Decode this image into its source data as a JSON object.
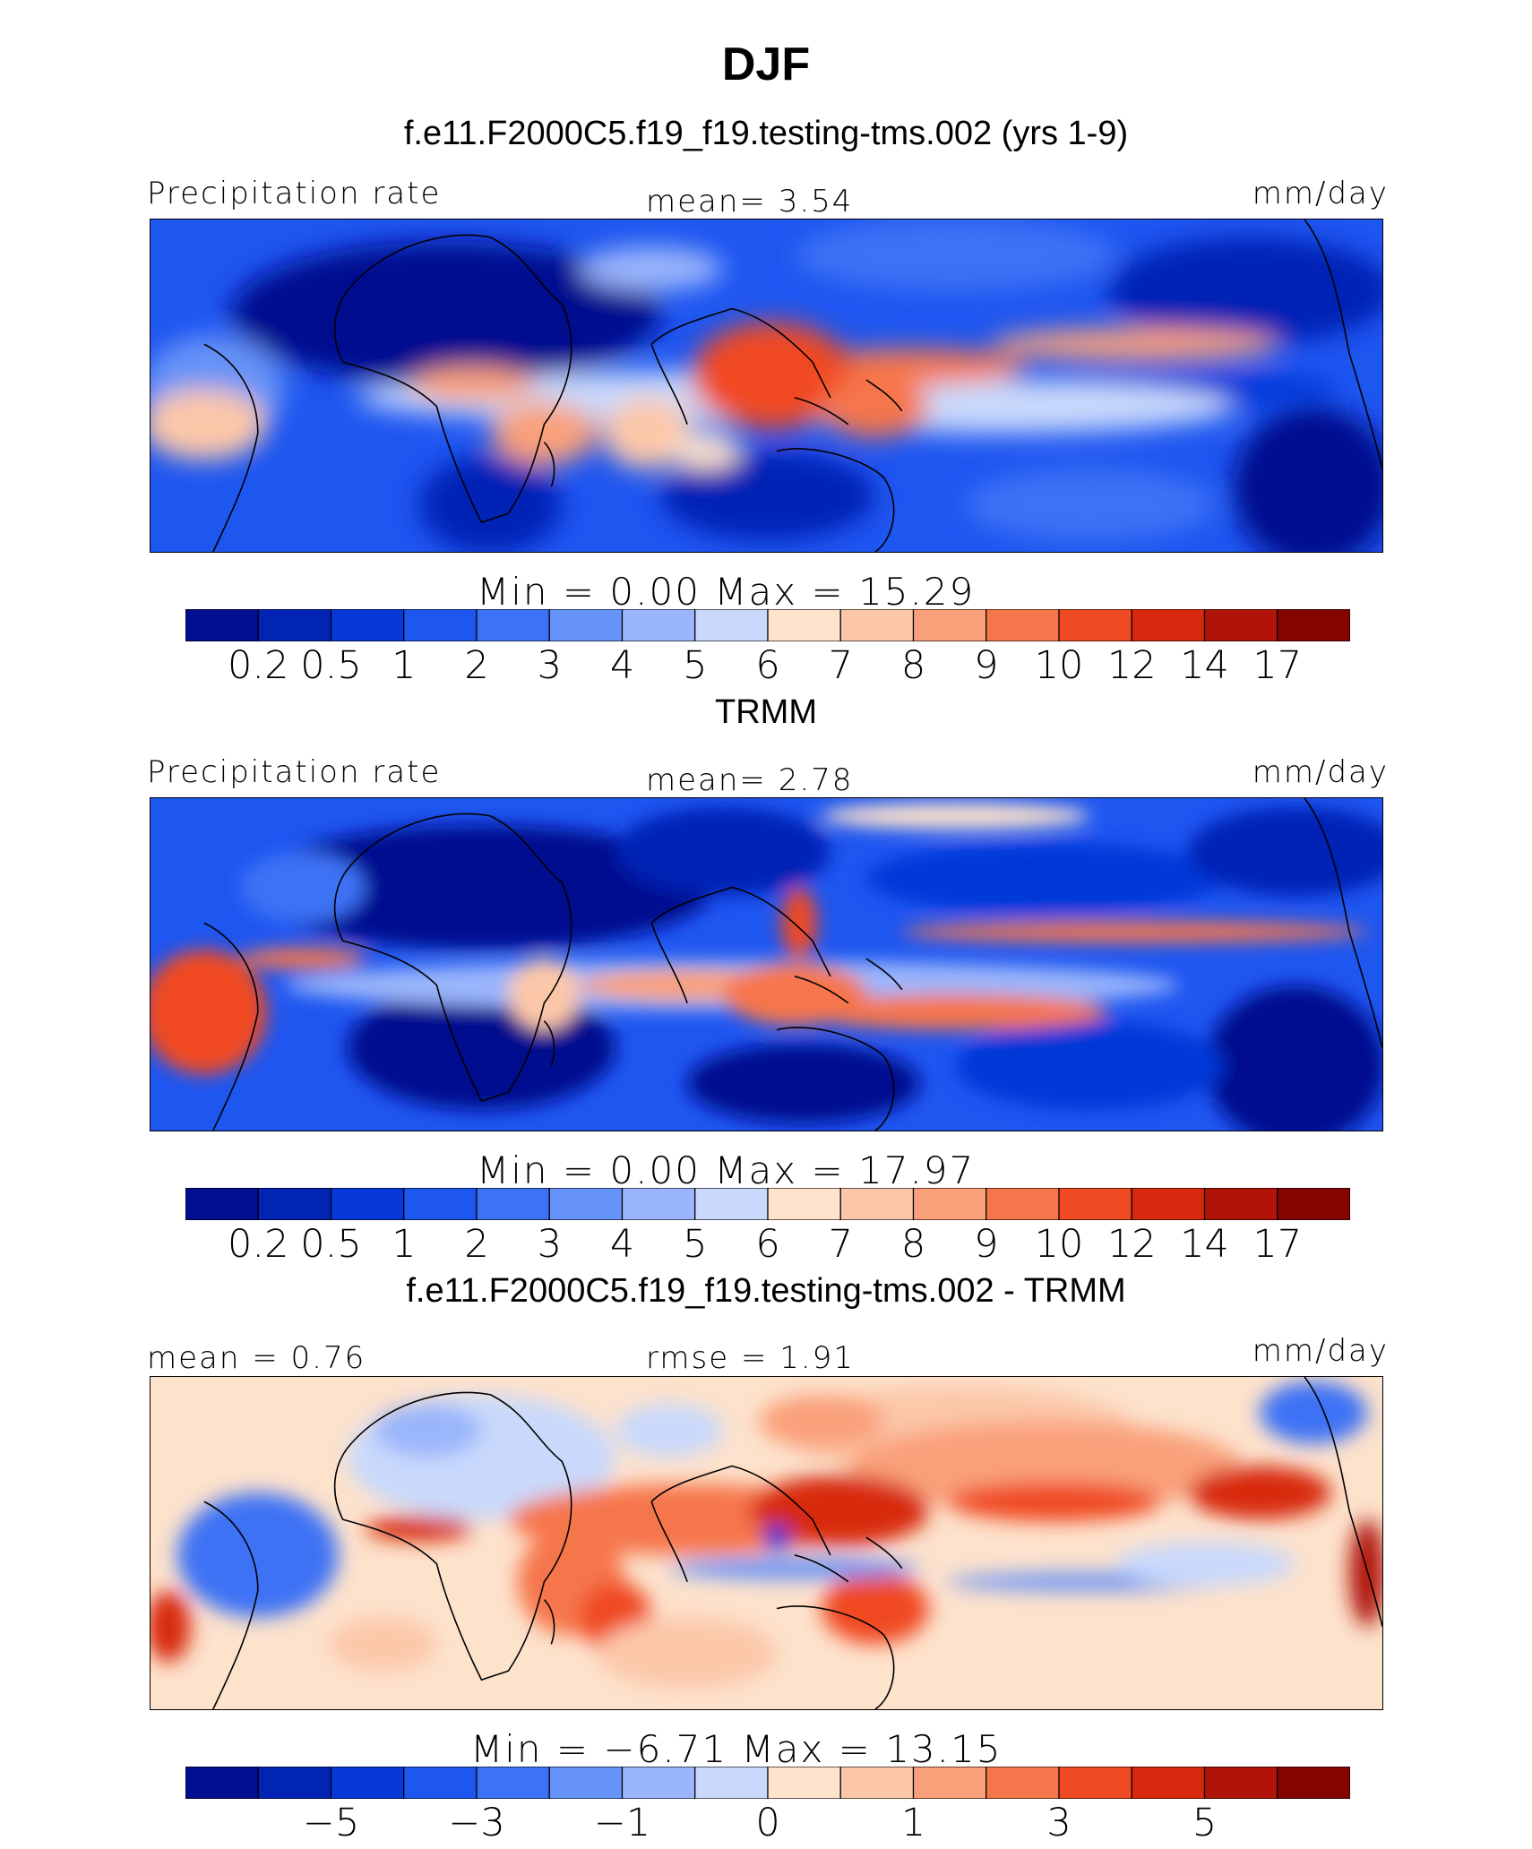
{
  "figure": {
    "title": "DJF",
    "units": "mm/day"
  },
  "panels": [
    {
      "title": "f.e11.F2000C5.f19_f19.testing-tms.002 (yrs 1-9)",
      "left_label": "Precipitation rate",
      "center_label": "mean=   3.54",
      "right_label": "mm/day",
      "minmax": "Min  =    0.00  Max  =   15.29"
    },
    {
      "title": "TRMM",
      "left_label": "Precipitation rate",
      "center_label": "mean=   2.78",
      "right_label": "mm/day",
      "minmax": "Min  =    0.00  Max  =   17.97"
    },
    {
      "title": "f.e11.F2000C5.f19_f19.testing-tms.002 - TRMM",
      "left_label": "mean  =   0.76",
      "center_label": "rmse  =   1.91",
      "right_label": "mm/day",
      "minmax": "Min  =   −6.71  Max  =   13.15"
    }
  ],
  "palette": [
    "#000e8f",
    "#0224b5",
    "#0638d8",
    "#1e56f0",
    "#3c72f5",
    "#6693f7",
    "#9ab5fb",
    "#c9d9fc",
    "#fde2cc",
    "#fcc7a9",
    "#f9a07a",
    "#f6764c",
    "#f04a24",
    "#d8290f",
    "#b01308",
    "#840400"
  ],
  "chart_data": [
    {
      "type": "heatmap",
      "title": "f.e11.F2000C5.f19_f19.testing-tms.002 (yrs 1-9)",
      "variable": "Precipitation rate",
      "units": "mm/day",
      "mean": 3.54,
      "min": 0.0,
      "max": 15.29,
      "levels": [
        "0.2",
        "0.5",
        "1",
        "2",
        "3",
        "4",
        "5",
        "6",
        "7",
        "8",
        "9",
        "10",
        "12",
        "14",
        "17"
      ]
    },
    {
      "type": "heatmap",
      "title": "TRMM",
      "variable": "Precipitation rate",
      "units": "mm/day",
      "mean": 2.78,
      "min": 0.0,
      "max": 17.97,
      "levels": [
        "0.2",
        "0.5",
        "1",
        "2",
        "3",
        "4",
        "5",
        "6",
        "7",
        "8",
        "9",
        "10",
        "12",
        "14",
        "17"
      ]
    },
    {
      "type": "heatmap",
      "title": "f.e11.F2000C5.f19_f19.testing-tms.002 - TRMM",
      "units": "mm/day",
      "mean": 0.76,
      "rmse": 1.91,
      "min": -6.71,
      "max": 13.15,
      "levels": [
        "−5",
        "−3",
        "−1",
        "0",
        "1",
        "3",
        "5"
      ]
    }
  ]
}
